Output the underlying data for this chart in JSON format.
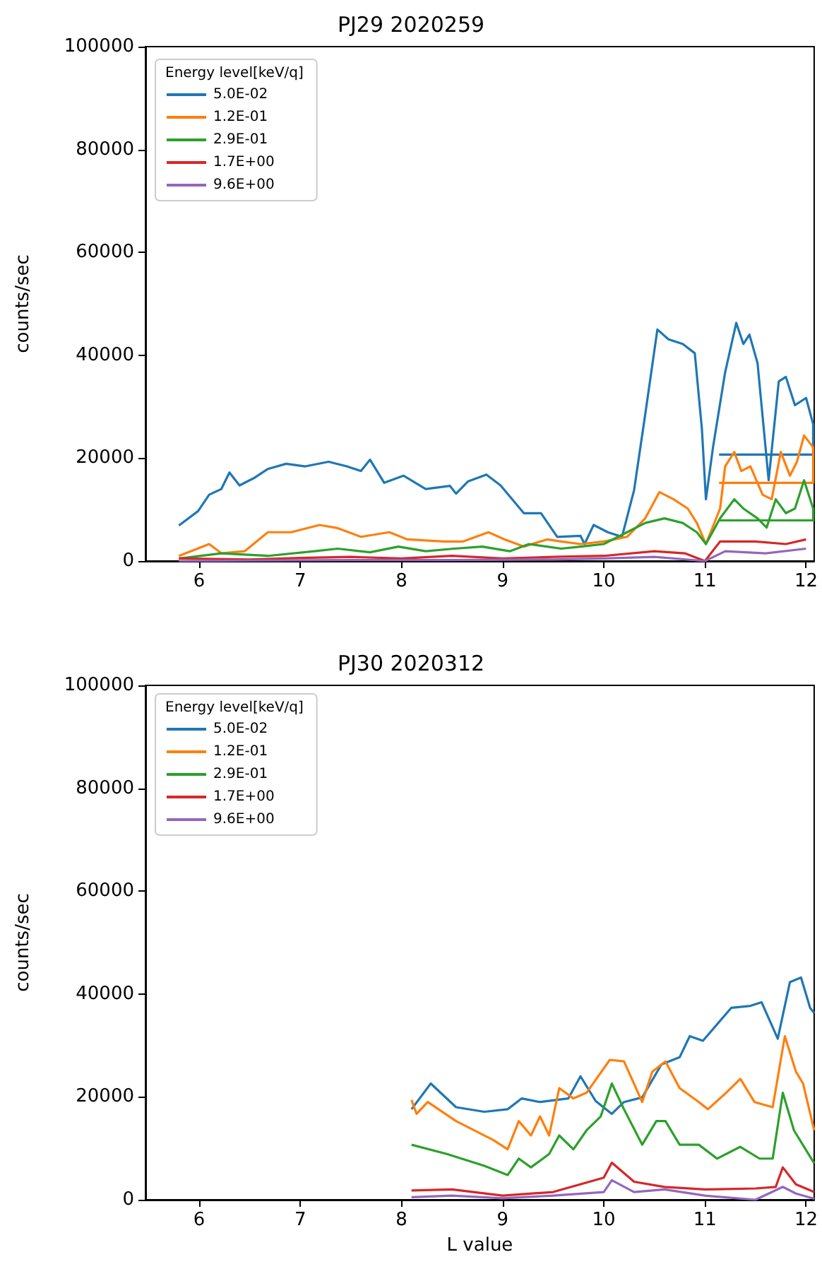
{
  "chart_data": [
    {
      "type": "line",
      "title": "PJ29 2020259",
      "ylabel": "counts/sec",
      "legend_title": "Energy level[keV/q]",
      "legend": "top left",
      "grid": false,
      "xlim": [
        5.47,
        12.08
      ],
      "xticks": [
        6,
        7,
        8,
        9,
        10,
        11,
        12
      ],
      "ylim": [
        0,
        100000
      ],
      "yticks": [
        0,
        20000,
        40000,
        60000,
        80000,
        100000
      ],
      "series": [
        {
          "name": "5.0E-02",
          "color": "#1f77b4",
          "x": [
            5.8,
            5.99,
            6.1,
            6.22,
            6.3,
            6.4,
            6.54,
            6.68,
            6.86,
            7.05,
            7.28,
            7.46,
            7.6,
            7.69,
            7.83,
            8.02,
            8.24,
            8.48,
            8.54,
            8.66,
            8.84,
            8.98,
            9.21,
            9.38,
            9.54,
            9.77,
            9.81,
            9.9,
            10.04,
            10.18,
            10.3,
            10.41,
            10.53,
            10.64,
            10.78,
            10.9,
            10.97,
            11.01,
            11.08,
            11.2,
            11.31,
            11.38,
            11.44,
            11.52,
            11.63,
            11.73,
            11.8,
            11.89,
            12.0,
            12.07,
            12.07,
            11.14
          ],
          "values": [
            6900,
            9700,
            12900,
            14000,
            17200,
            14700,
            16100,
            17900,
            18900,
            18400,
            19300,
            18400,
            17500,
            19700,
            15200,
            16600,
            14000,
            14600,
            13100,
            15500,
            16800,
            14700,
            9300,
            9300,
            4700,
            4900,
            3300,
            7000,
            5600,
            4700,
            13800,
            28500,
            45000,
            43100,
            42200,
            40400,
            25700,
            12000,
            22100,
            36700,
            46300,
            42200,
            44000,
            38500,
            15700,
            34900,
            35800,
            30300,
            31700,
            26600,
            20700,
            20700
          ]
        },
        {
          "name": "1.2E-01",
          "color": "#ff7f0e",
          "x": [
            5.8,
            6.1,
            6.22,
            6.45,
            6.68,
            6.91,
            7.19,
            7.37,
            7.6,
            7.88,
            8.06,
            8.42,
            8.61,
            8.86,
            9.02,
            9.21,
            9.44,
            9.58,
            9.77,
            10.0,
            10.23,
            10.41,
            10.55,
            10.69,
            10.83,
            10.92,
            11.01,
            11.15,
            11.2,
            11.29,
            11.36,
            11.45,
            11.57,
            11.66,
            11.75,
            11.84,
            11.91,
            11.98,
            12.07,
            12.07,
            11.14
          ],
          "values": [
            1000,
            3300,
            1500,
            1900,
            5600,
            5600,
            7000,
            6400,
            4700,
            5600,
            4200,
            3800,
            3800,
            5600,
            4200,
            2800,
            4200,
            3800,
            3300,
            3800,
            4700,
            8300,
            13400,
            12000,
            10200,
            7400,
            3300,
            10200,
            18400,
            21200,
            17500,
            18400,
            12900,
            12000,
            21200,
            16600,
            19300,
            24400,
            22100,
            15200,
            15200
          ]
        },
        {
          "name": "2.9E-01",
          "color": "#2ca02c",
          "x": [
            5.8,
            6.22,
            6.68,
            7.14,
            7.37,
            7.69,
            7.97,
            8.24,
            8.52,
            8.8,
            9.07,
            9.26,
            9.44,
            9.58,
            9.77,
            10.0,
            10.23,
            10.41,
            10.6,
            10.78,
            10.92,
            11.01,
            11.15,
            11.29,
            11.38,
            11.52,
            11.61,
            11.7,
            11.8,
            11.89,
            11.98,
            12.07,
            12.07,
            11.14
          ],
          "values": [
            500,
            1500,
            1000,
            1900,
            2400,
            1700,
            2800,
            1900,
            2400,
            2800,
            1900,
            3300,
            2800,
            2400,
            2800,
            3300,
            5600,
            7400,
            8300,
            7400,
            5600,
            3300,
            8300,
            12000,
            10200,
            8300,
            6500,
            12000,
            9300,
            10200,
            15700,
            10200,
            7900,
            7900
          ]
        },
        {
          "name": "1.7E+00",
          "color": "#d62728",
          "x": [
            5.8,
            6.5,
            7.0,
            7.5,
            8.0,
            8.5,
            9.0,
            9.5,
            10.0,
            10.5,
            10.8,
            11.0,
            11.15,
            11.5,
            11.8,
            12.0
          ],
          "values": [
            500,
            300,
            600,
            800,
            500,
            1000,
            500,
            800,
            1000,
            1900,
            1500,
            0,
            3800,
            3800,
            3300,
            4200
          ]
        },
        {
          "name": "9.6E+00",
          "color": "#9467bd",
          "x": [
            5.8,
            6.5,
            7.5,
            8.5,
            9.5,
            10.0,
            10.5,
            11.0,
            11.2,
            11.6,
            12.0
          ],
          "values": [
            0,
            100,
            200,
            200,
            300,
            500,
            800,
            0,
            1900,
            1500,
            2400
          ]
        }
      ]
    },
    {
      "type": "line",
      "title": "PJ30 2020312",
      "xlabel": "L value",
      "ylabel": "counts/sec",
      "legend_title": "Energy level[keV/q]",
      "legend": "top left",
      "grid": false,
      "xlim": [
        5.47,
        12.08
      ],
      "xticks": [
        6,
        7,
        8,
        9,
        10,
        11,
        12
      ],
      "ylim": [
        0,
        100000
      ],
      "yticks": [
        0,
        20000,
        40000,
        60000,
        80000,
        100000
      ],
      "series": [
        {
          "name": "5.0E-02",
          "color": "#1f77b4",
          "x": [
            8.1,
            8.29,
            8.54,
            8.82,
            9.05,
            9.19,
            9.37,
            9.65,
            9.77,
            9.92,
            10.08,
            10.2,
            10.38,
            10.57,
            10.75,
            10.85,
            10.98,
            11.26,
            11.45,
            11.56,
            11.72,
            11.84,
            11.95,
            12.04,
            12.08
          ],
          "values": [
            17600,
            22600,
            18000,
            17100,
            17600,
            19700,
            19000,
            19700,
            24000,
            19200,
            16700,
            19000,
            19900,
            26300,
            27700,
            31800,
            30900,
            37300,
            37700,
            38400,
            31300,
            42300,
            43200,
            37300,
            36300
          ]
        },
        {
          "name": "1.2E-01",
          "color": "#ff7f0e",
          "x": [
            8.1,
            8.15,
            8.26,
            8.54,
            8.91,
            9.05,
            9.16,
            9.28,
            9.37,
            9.46,
            9.56,
            9.7,
            9.83,
            10.06,
            10.2,
            10.38,
            10.48,
            10.61,
            10.75,
            10.94,
            11.03,
            11.21,
            11.35,
            11.49,
            11.67,
            11.79,
            11.9,
            11.97,
            12.08
          ],
          "values": [
            19400,
            16700,
            19000,
            15300,
            11600,
            9800,
            15300,
            12500,
            16200,
            12500,
            21700,
            19700,
            20800,
            27200,
            26900,
            19000,
            24900,
            26900,
            21700,
            19000,
            17600,
            20800,
            23500,
            19000,
            18000,
            31800,
            24900,
            22600,
            13500
          ]
        },
        {
          "name": "2.9E-01",
          "color": "#2ca02c",
          "x": [
            8.1,
            8.45,
            8.82,
            9.05,
            9.16,
            9.28,
            9.46,
            9.56,
            9.7,
            9.83,
            9.97,
            10.08,
            10.2,
            10.38,
            10.52,
            10.61,
            10.75,
            10.94,
            11.12,
            11.35,
            11.54,
            11.67,
            11.77,
            11.88,
            12.08
          ],
          "values": [
            10700,
            8900,
            6600,
            4800,
            8000,
            6300,
            8900,
            12500,
            9800,
            13500,
            16200,
            22600,
            17600,
            10700,
            15300,
            15300,
            10700,
            10700,
            8000,
            10300,
            8000,
            8000,
            20800,
            13500,
            7100
          ]
        },
        {
          "name": "1.7E+00",
          "color": "#d62728",
          "x": [
            8.1,
            8.5,
            9.0,
            9.5,
            10.0,
            10.08,
            10.3,
            10.6,
            11.0,
            11.5,
            11.7,
            11.77,
            11.9,
            12.08
          ],
          "values": [
            1800,
            2000,
            800,
            1500,
            4300,
            7200,
            3500,
            2500,
            2000,
            2200,
            2500,
            6300,
            3000,
            1500
          ]
        },
        {
          "name": "9.6E+00",
          "color": "#9467bd",
          "x": [
            8.1,
            8.5,
            9.0,
            9.5,
            10.0,
            10.08,
            10.3,
            10.6,
            11.0,
            11.5,
            11.77,
            11.9,
            12.08
          ],
          "values": [
            500,
            800,
            300,
            800,
            1500,
            3800,
            1500,
            2000,
            800,
            0,
            2500,
            1200,
            200
          ]
        }
      ]
    }
  ]
}
